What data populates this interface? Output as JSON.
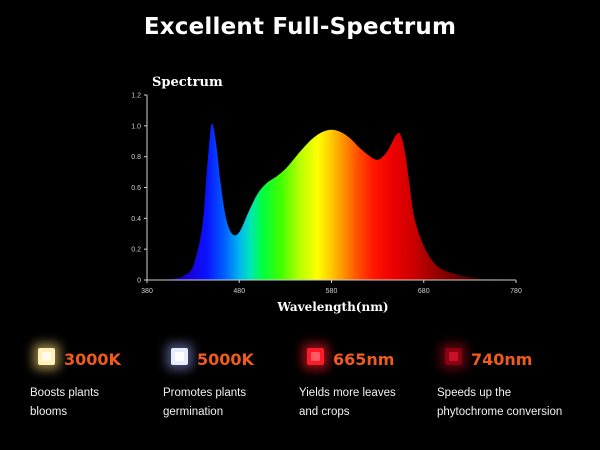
{
  "headline": "Excellent Full-Spectrum",
  "chart_data": {
    "type": "area",
    "title": "Spectrum",
    "xlabel": "Wavelength(nm)",
    "ylabel": "",
    "xlim": [
      380,
      780
    ],
    "ylim": [
      0,
      1.2
    ],
    "x_ticks": [
      "380",
      "480",
      "580",
      "680",
      "780"
    ],
    "y_ticks": [
      "0",
      "0.2",
      "0.4",
      "0.6",
      "0.8",
      "1.0",
      "1.2"
    ],
    "grid": false,
    "legend": "none",
    "fill": "visible-spectrum gradient (violet to red by wavelength)",
    "series": [
      {
        "x": [
          395,
          410,
          420,
          430,
          440,
          445,
          450,
          455,
          460,
          465,
          470,
          475,
          480,
          485,
          490,
          500,
          510,
          520,
          530,
          540,
          550,
          560,
          570,
          580,
          590,
          600,
          610,
          620,
          630,
          640,
          650,
          655,
          660,
          665,
          670,
          680,
          690,
          700,
          720,
          740,
          760,
          780
        ],
        "y": [
          0.0,
          0.01,
          0.03,
          0.09,
          0.35,
          0.72,
          1.01,
          0.88,
          0.62,
          0.42,
          0.32,
          0.29,
          0.31,
          0.37,
          0.44,
          0.56,
          0.63,
          0.67,
          0.72,
          0.79,
          0.86,
          0.92,
          0.96,
          0.975,
          0.96,
          0.92,
          0.86,
          0.81,
          0.78,
          0.83,
          0.94,
          0.94,
          0.82,
          0.6,
          0.4,
          0.22,
          0.12,
          0.07,
          0.03,
          0.01,
          0.005,
          0.0
        ]
      }
    ]
  },
  "features": [
    {
      "icon": "warm-white-led-icon",
      "value": "3000K",
      "desc": [
        "Boosts plants",
        "blooms"
      ]
    },
    {
      "icon": "cool-white-led-icon",
      "value": "5000K",
      "desc": [
        "Promotes plants",
        "germination"
      ]
    },
    {
      "icon": "red-led-icon",
      "value": "665nm",
      "desc": [
        "Yields more leaves",
        "and crops"
      ]
    },
    {
      "icon": "far-red-led-icon",
      "value": "740nm",
      "desc": [
        "Speeds up the",
        "phytochrome conversion"
      ]
    }
  ]
}
